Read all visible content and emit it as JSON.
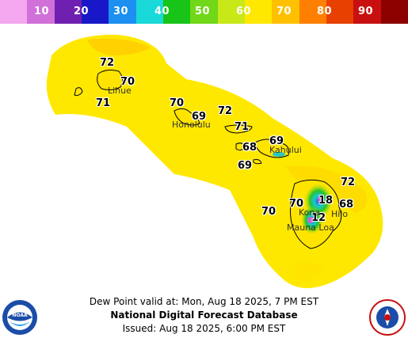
{
  "legend": {
    "labels": [
      "10",
      "20",
      "30",
      "40",
      "50",
      "60",
      "70",
      "80",
      "90"
    ],
    "colors": [
      "#f3a8f0",
      "#d070d8",
      "#7020b0",
      "#1818c8",
      "#1c8ff0",
      "#19d9d9",
      "#18c418",
      "#70d818",
      "#c8e818",
      "#ffe800",
      "#ffc000",
      "#ff8000",
      "#e84000",
      "#c81010",
      "#8c0000"
    ]
  },
  "map": {
    "labels": [
      {
        "text": "72",
        "name": "value-label-kauai-north"
      },
      {
        "text": "70",
        "name": "value-label-kauai-east"
      },
      {
        "text": "71",
        "name": "value-label-kauai-south"
      },
      {
        "text": "70",
        "name": "value-label-oahu-west"
      },
      {
        "text": "69",
        "name": "value-label-oahu-east"
      },
      {
        "text": "72",
        "name": "value-label-channel"
      },
      {
        "text": "71",
        "name": "value-label-molokai"
      },
      {
        "text": "69",
        "name": "value-label-maui-north"
      },
      {
        "text": "68",
        "name": "value-label-lanai"
      },
      {
        "text": "69",
        "name": "value-label-kahoolawe"
      },
      {
        "text": "72",
        "name": "value-label-hawaii-northeast"
      },
      {
        "text": "18",
        "name": "value-label-mauna-kea"
      },
      {
        "text": "70",
        "name": "value-label-kona-north"
      },
      {
        "text": "68",
        "name": "value-label-hilo"
      },
      {
        "text": "70",
        "name": "value-label-kona-west"
      },
      {
        "text": "12",
        "name": "value-label-mauna-loa"
      }
    ],
    "cities": [
      {
        "text": "Lihue",
        "name": "city-lihue"
      },
      {
        "text": "Honolulu",
        "name": "city-honolulu"
      },
      {
        "text": "Kahului",
        "name": "city-kahului"
      },
      {
        "text": "Kona",
        "name": "city-kona"
      },
      {
        "text": "Hilo",
        "name": "city-hilo"
      },
      {
        "text": "Mauna Loa",
        "name": "city-mauna-loa"
      }
    ]
  },
  "footer": {
    "line1": "Dew Point valid at: Mon, Aug 18 2025, 7 PM EST",
    "line2": "National Digital Forecast Database",
    "line3": "Issued: Aug 18 2025, 6:00 PM EST"
  },
  "logos": {
    "left": "NOAA",
    "right": "NATIONAL WEATHER SERVICE"
  }
}
